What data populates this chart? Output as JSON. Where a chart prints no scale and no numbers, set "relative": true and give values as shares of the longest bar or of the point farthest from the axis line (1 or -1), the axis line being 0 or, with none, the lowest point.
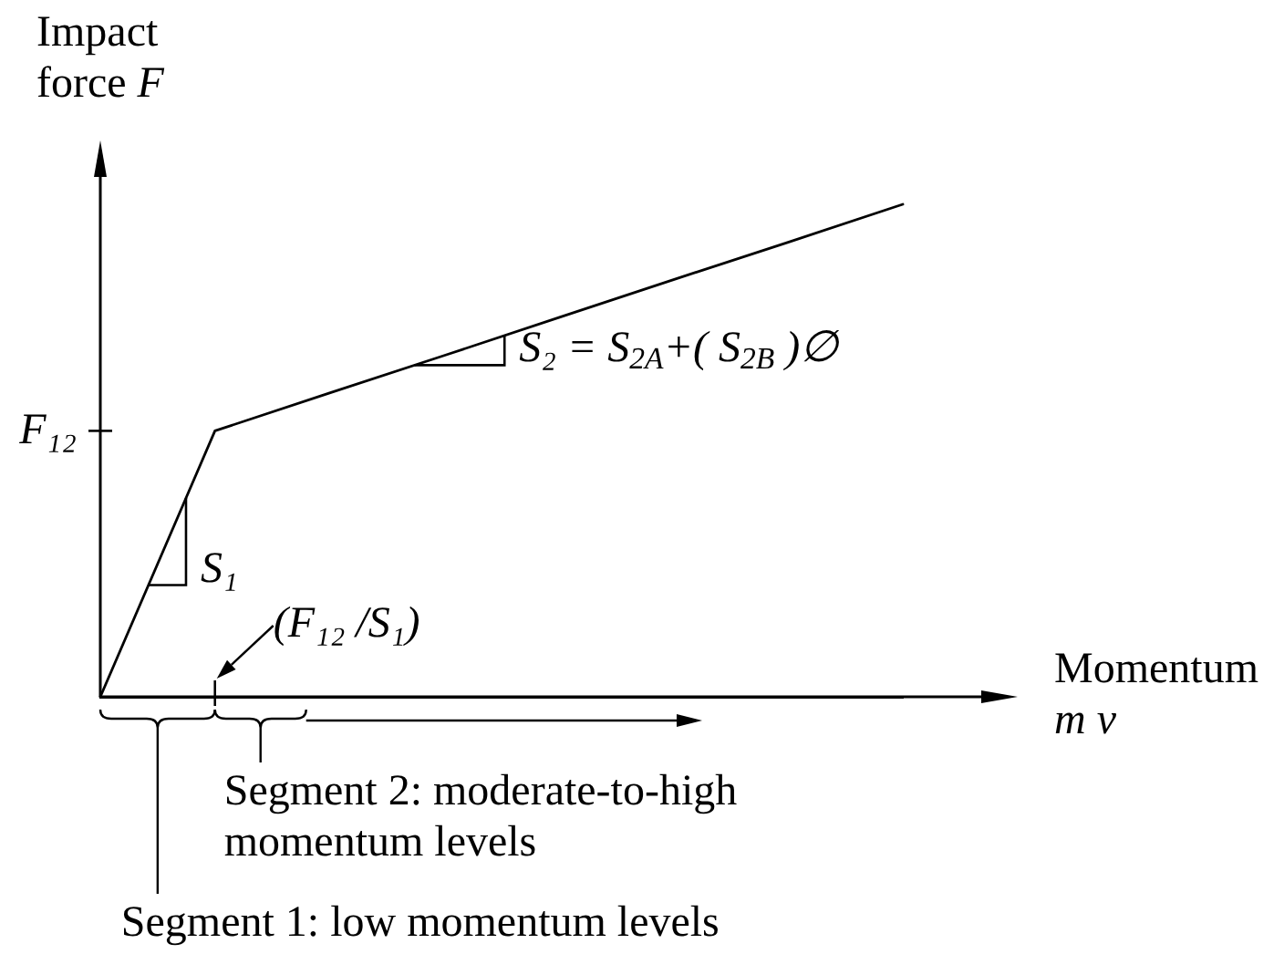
{
  "chart_data": {
    "type": "line",
    "relative": true,
    "ylabel": "Impact force F",
    "xlabel": "Momentum m v",
    "marker": "none",
    "categories": [
      null,
      null,
      null,
      null,
      null,
      null,
      null,
      null
    ],
    "series": [
      {
        "color": "#000000",
        "values": [
          0,
          0.54,
          0.617,
          0.693,
          0.77,
          0.847,
          0.923,
          1
        ]
      }
    ],
    "annotations": [
      "F₁₂",
      "(F₁₂ /S₁)",
      "S₁",
      "S₂ = S$_{2A}$+( S$_{2B}$ )∅",
      "Segment 1: low momentum levels",
      "Segment 2: moderate-to-high momentum levels"
    ]
  }
}
